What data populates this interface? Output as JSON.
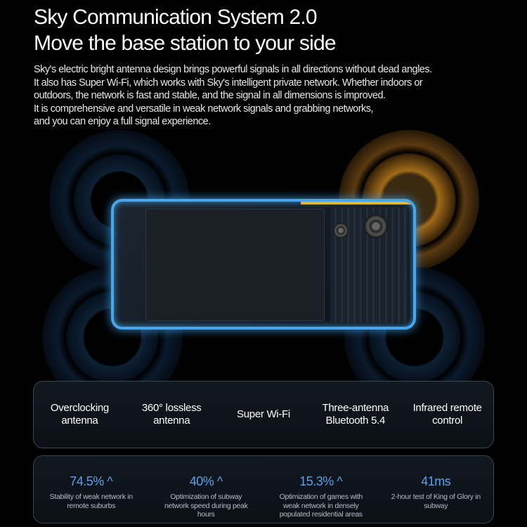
{
  "title": {
    "line1": "Sky Communication System 2.0",
    "line2": "Move the base station to your side"
  },
  "description": [
    "Sky's electric bright antenna design brings powerful signals in all directions without dead angles.",
    "It also has Super Wi-Fi, which works with Sky's intelligent private network. Whether indoors or",
    "outdoors, the network is fast and stable, and the signal in all dimensions is improved.",
    "It is comprehensive and versatile in weak network signals and grabbing networks,",
    "and you can enjoy a full signal experience."
  ],
  "features": [
    [
      "Overclocking",
      "antenna"
    ],
    [
      "360° lossless",
      "antenna"
    ],
    [
      "Super Wi-Fi",
      ""
    ],
    [
      "Three-antenna",
      "Bluetooth 5.4"
    ],
    [
      "Infrared remote",
      "control"
    ]
  ],
  "stats": [
    {
      "value": "74.5%",
      "arrow": "^",
      "label": "Stability of weak network in remote suburbs"
    },
    {
      "value": "40%",
      "arrow": "^",
      "label": "Optimization of subway network speed during peak hours"
    },
    {
      "value": "15.3%",
      "arrow": "^",
      "label": "Optimization of games with weak network in densely populated residential areas"
    },
    {
      "value": "41ms",
      "arrow": "",
      "label": "2-hour test of King of Glory in subway"
    }
  ],
  "colors": {
    "accent": "#5aa0ec",
    "phone_glow": "#4aa6e8",
    "gold": "#e8b040"
  }
}
